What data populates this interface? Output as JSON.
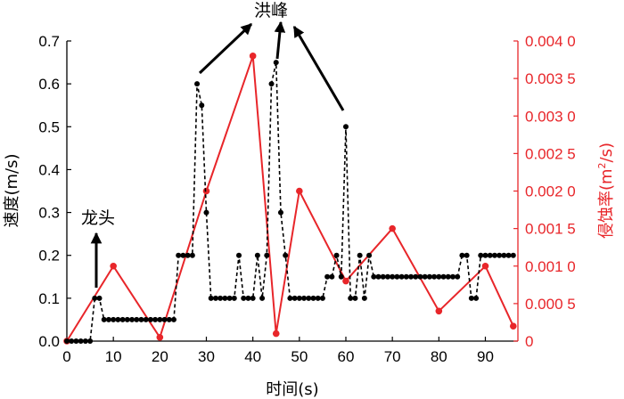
{
  "chart_data": {
    "type": "line",
    "xlabel": "时间(s)",
    "ylabel_left": "速度(m/s)",
    "ylabel_right_main": "侵蚀率(m",
    "ylabel_right_sup": "2",
    "ylabel_right_tail": "/s)",
    "xlim": [
      0,
      97
    ],
    "ylim_left": [
      0,
      0.7
    ],
    "ylim_right": [
      0,
      0.004
    ],
    "x_ticks": [
      0,
      10,
      20,
      30,
      40,
      50,
      60,
      70,
      80,
      90
    ],
    "x_tick_labels": [
      "0",
      "10",
      "20",
      "30",
      "40",
      "50",
      "60",
      "70",
      "80",
      "90"
    ],
    "y_left_ticks": [
      0,
      0.1,
      0.2,
      0.3,
      0.4,
      0.5,
      0.6,
      0.7
    ],
    "y_left_tick_labels": [
      "0.0",
      "0.1",
      "0.2",
      "0.3",
      "0.4",
      "0.5",
      "0.6",
      "0.7"
    ],
    "y_right_ticks": [
      0,
      0.0005,
      0.001,
      0.0015,
      0.002,
      0.0025,
      0.003,
      0.0035,
      0.004
    ],
    "y_right_tick_labels": [
      "0",
      "0.000 5",
      "0.001 0",
      "0.001 5",
      "0.002 0",
      "0.002 5",
      "0.003 0",
      "0.003 5",
      "0.004 0"
    ],
    "grid": false,
    "colors": {
      "velocity": "#000000",
      "erosion": "#e8262a",
      "right_axis": "#e8262a"
    },
    "series": [
      {
        "axis": "left",
        "style": "dashed-dots",
        "x": [
          0,
          1,
          2,
          3,
          4,
          5,
          6,
          7,
          8,
          9,
          10,
          11,
          12,
          13,
          14,
          15,
          16,
          17,
          18,
          19,
          20,
          21,
          22,
          23,
          24,
          25,
          26,
          27,
          28,
          29,
          30,
          31,
          32,
          33,
          34,
          35,
          36,
          37,
          38,
          39,
          40,
          41,
          42,
          43,
          44,
          45,
          46,
          47,
          48,
          49,
          50,
          51,
          52,
          53,
          54,
          55,
          56,
          57,
          58,
          59,
          60,
          61,
          62,
          63,
          64,
          65,
          66,
          67,
          68,
          69,
          70,
          71,
          72,
          73,
          74,
          75,
          76,
          77,
          78,
          79,
          80,
          81,
          82,
          83,
          84,
          85,
          86,
          87,
          88,
          89,
          90,
          91,
          92,
          93,
          94,
          95,
          96
        ],
        "y": [
          0,
          0,
          0,
          0,
          0,
          0,
          0.1,
          0.1,
          0.05,
          0.05,
          0.05,
          0.05,
          0.05,
          0.05,
          0.05,
          0.05,
          0.05,
          0.05,
          0.05,
          0.05,
          0.05,
          0.05,
          0.05,
          0.05,
          0.2,
          0.2,
          0.2,
          0.2,
          0.6,
          0.55,
          0.3,
          0.1,
          0.1,
          0.1,
          0.1,
          0.1,
          0.1,
          0.2,
          0.1,
          0.1,
          0.1,
          0.2,
          0.1,
          0.2,
          0.6,
          0.65,
          0.3,
          0.2,
          0.1,
          0.1,
          0.1,
          0.1,
          0.1,
          0.1,
          0.1,
          0.1,
          0.15,
          0.15,
          0.2,
          0.15,
          0.5,
          0.1,
          0.1,
          0.2,
          0.1,
          0.2,
          0.15,
          0.15,
          0.15,
          0.15,
          0.15,
          0.15,
          0.15,
          0.15,
          0.15,
          0.15,
          0.15,
          0.15,
          0.15,
          0.15,
          0.15,
          0.15,
          0.15,
          0.15,
          0.15,
          0.2,
          0.2,
          0.1,
          0.1,
          0.2,
          0.2,
          0.2,
          0.2,
          0.2,
          0.2,
          0.2,
          0.2
        ]
      },
      {
        "axis": "right",
        "style": "solid",
        "x": [
          0,
          10,
          20,
          30,
          40,
          45,
          50,
          60,
          70,
          80,
          90,
          96
        ],
        "y": [
          0,
          0.001,
          5e-05,
          0.002,
          0.0038,
          0.0001,
          0.002,
          0.0008,
          0.0015,
          0.0004,
          0.001,
          0.0002
        ]
      }
    ],
    "annotations": [
      {
        "text": "洪峰",
        "target": "peaks"
      },
      {
        "text": "龙头",
        "target": "front"
      }
    ]
  }
}
